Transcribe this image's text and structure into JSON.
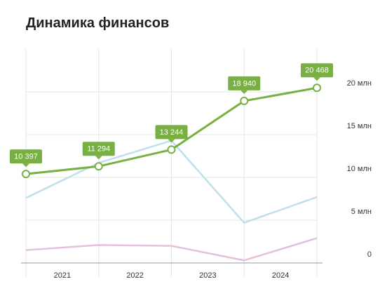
{
  "chart_data": {
    "type": "line",
    "title": "Динамика финансов",
    "categories": [
      null,
      null,
      null,
      null,
      null
    ],
    "periods": [
      "2021",
      "2022",
      "2023",
      "2024"
    ],
    "ylim": [
      0,
      25
    ],
    "yticks": [
      0,
      {
        "value": 5,
        "label": "5 млн"
      },
      {
        "value": 10,
        "label": "10 млн"
      },
      {
        "value": 15,
        "label": "15 млн"
      },
      {
        "value": 20,
        "label": "20 млн"
      }
    ],
    "grid": true,
    "series": [
      {
        "color": "#e6bfdc",
        "values": [
          1.5,
          2.1,
          2.0,
          0.3,
          2.9
        ]
      },
      {
        "color": "#bfdfec",
        "values": [
          7.6,
          11.7,
          14.3,
          4.7,
          7.7
        ]
      },
      {
        "color": "#78b043",
        "values": [
          10.397,
          11.294,
          13.244,
          18.94,
          20.468
        ],
        "value_labels": [
          "10 397",
          "11 294",
          "13 244",
          "18 940",
          "20 468"
        ]
      }
    ]
  }
}
